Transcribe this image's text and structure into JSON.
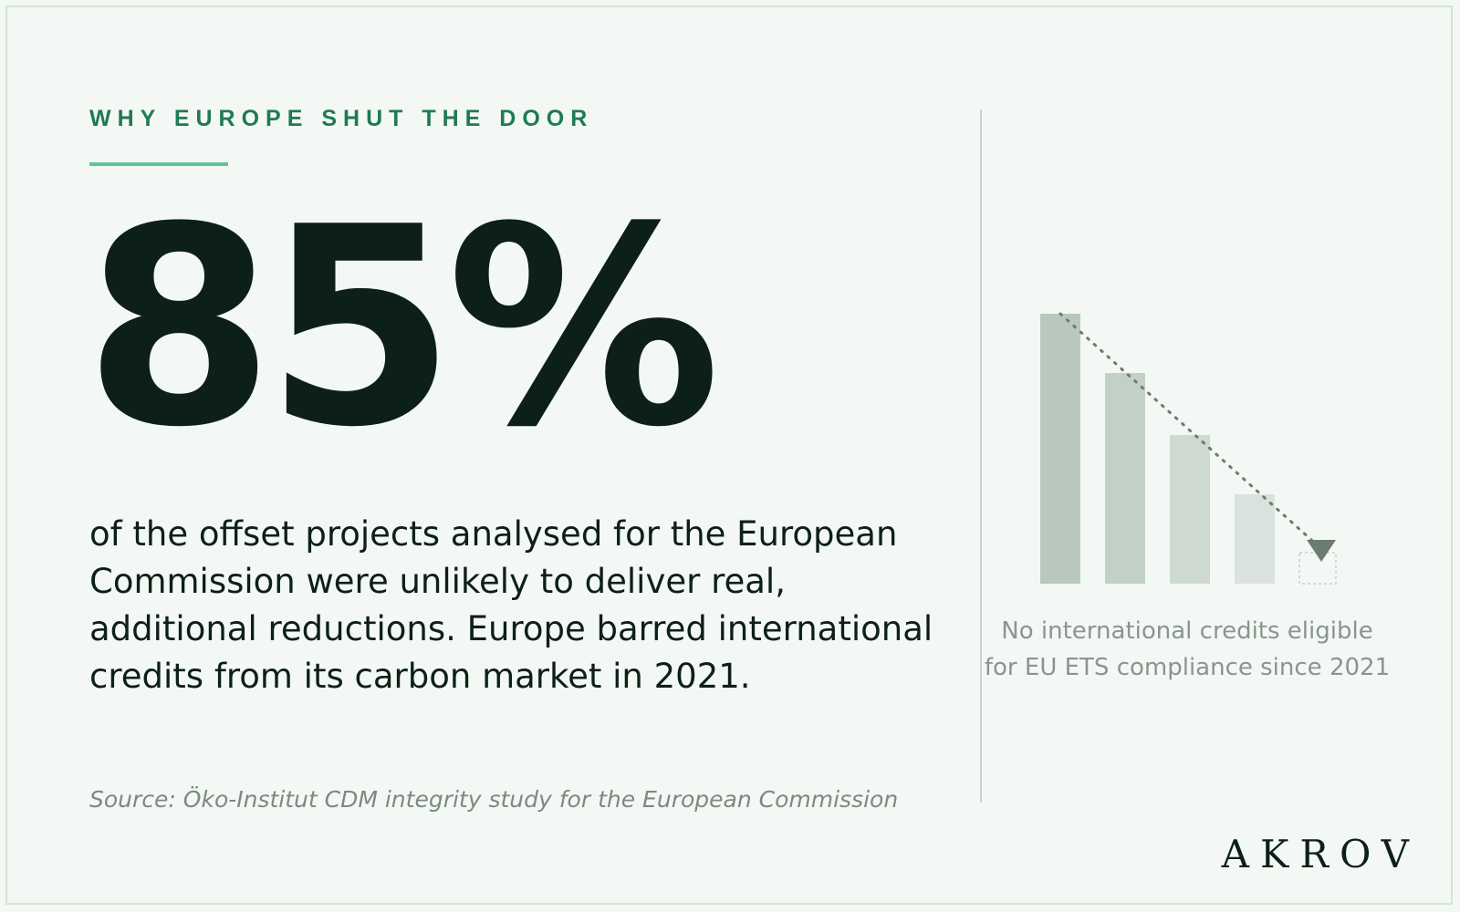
{
  "eyebrow": "WHY EUROPE SHUT THE DOOR",
  "big_stat": "85%",
  "body_text": "of the offset projects analysed for the European Commission were unlikely to deliver real, additional reductions. Europe barred international credits from its carbon market in 2021.",
  "source": "Source: Öko-Institut CDM integrity study for the European Commission",
  "chart_caption": "No international credits eligible for EU ETS compliance since 2021",
  "brand": "AKROV",
  "colors": {
    "background": "#f3f8f4",
    "accent": "#1f7a55",
    "accent_rule": "#5fc496",
    "text": "#0d2018",
    "muted": "#7b8a82",
    "bars": [
      "#b8c8be",
      "#c3d0c7",
      "#ced9d1",
      "#d9e2dc"
    ],
    "trend": "#6b7d73"
  },
  "chart_data": {
    "type": "bar",
    "values": [
      100,
      78,
      55,
      33,
      0
    ],
    "trend_line": "dotted-declining",
    "end_marker": "down-triangle-icon"
  }
}
